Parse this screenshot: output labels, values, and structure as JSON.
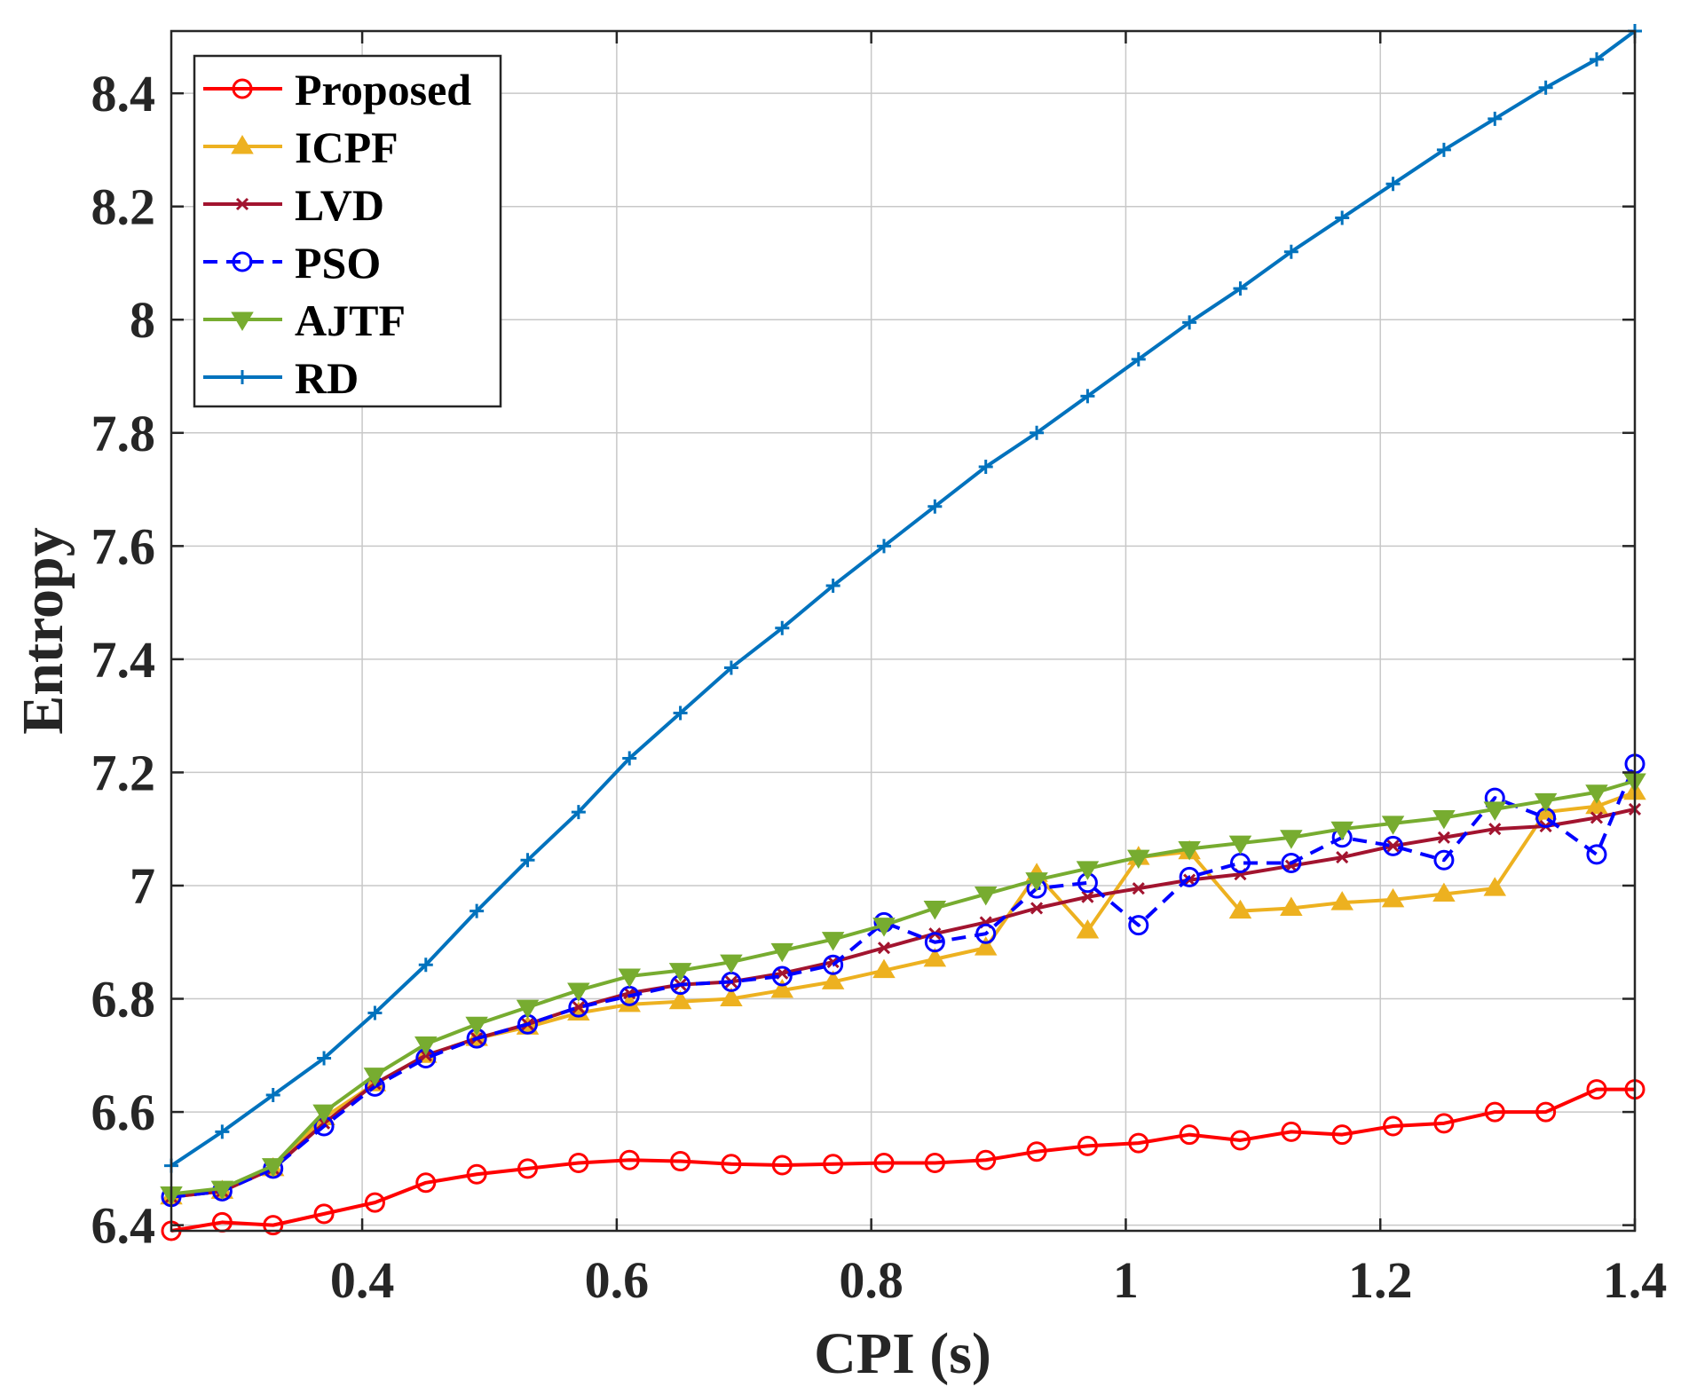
{
  "chart_data": {
    "type": "line",
    "title": "",
    "xlabel": "CPI (s)",
    "ylabel": "Entropy",
    "xlim": [
      0.25,
      1.4
    ],
    "ylim": [
      6.39,
      8.51
    ],
    "grid": true,
    "legend_position": "top-left",
    "x_ticks": [
      0.4,
      0.6,
      0.8,
      1,
      1.2,
      1.4
    ],
    "x_tick_labels": [
      "0.4",
      "0.6",
      "0.8",
      "1",
      "1.2",
      "1.4"
    ],
    "y_ticks": [
      6.4,
      6.6,
      6.8,
      7,
      7.2,
      7.4,
      7.6,
      7.8,
      8,
      8.2,
      8.4
    ],
    "y_tick_labels": [
      "6.4",
      "6.6",
      "6.8",
      "7",
      "7.2",
      "7.4",
      "7.6",
      "7.8",
      "8",
      "8.2",
      "8.4"
    ],
    "x": [
      0.25,
      0.29,
      0.33,
      0.37,
      0.41,
      0.45,
      0.49,
      0.53,
      0.57,
      0.61,
      0.65,
      0.69,
      0.73,
      0.77,
      0.81,
      0.85,
      0.89,
      0.93,
      0.97,
      1.01,
      1.05,
      1.09,
      1.13,
      1.17,
      1.21,
      1.25,
      1.29,
      1.33,
      1.37,
      1.4
    ],
    "series": [
      {
        "name": "Proposed",
        "color": "#ff0000",
        "marker": "circle",
        "dash": "solid",
        "values": [
          6.39,
          6.405,
          6.4,
          6.42,
          6.44,
          6.475,
          6.49,
          6.5,
          6.51,
          6.515,
          6.513,
          6.508,
          6.506,
          6.508,
          6.51,
          6.51,
          6.515,
          6.53,
          6.54,
          6.545,
          6.56,
          6.55,
          6.565,
          6.56,
          6.575,
          6.58,
          6.6,
          6.6,
          6.64,
          6.64
        ]
      },
      {
        "name": "ICPF",
        "color": "#edb120",
        "marker": "triangle-up",
        "dash": "solid",
        "values": [
          6.45,
          6.46,
          6.5,
          6.59,
          6.65,
          6.7,
          6.73,
          6.75,
          6.775,
          6.79,
          6.795,
          6.8,
          6.815,
          6.83,
          6.85,
          6.87,
          6.89,
          7.02,
          6.92,
          7.05,
          7.06,
          6.955,
          6.96,
          6.97,
          6.975,
          6.985,
          6.995,
          7.13,
          7.14,
          7.165
        ]
      },
      {
        "name": "LVD",
        "color": "#a2142f",
        "marker": "x",
        "dash": "solid",
        "values": [
          6.45,
          6.46,
          6.5,
          6.58,
          6.65,
          6.7,
          6.73,
          6.755,
          6.785,
          6.81,
          6.825,
          6.83,
          6.845,
          6.865,
          6.89,
          6.915,
          6.935,
          6.96,
          6.98,
          6.995,
          7.01,
          7.02,
          7.035,
          7.05,
          7.07,
          7.085,
          7.1,
          7.105,
          7.12,
          7.135
        ]
      },
      {
        "name": "PSO",
        "color": "#0000ff",
        "marker": "circle",
        "dash": "dashed",
        "values": [
          6.45,
          6.46,
          6.5,
          6.575,
          6.645,
          6.695,
          6.73,
          6.755,
          6.785,
          6.805,
          6.825,
          6.83,
          6.84,
          6.86,
          6.935,
          6.9,
          6.915,
          6.995,
          7.005,
          6.93,
          7.015,
          7.04,
          7.04,
          7.085,
          7.07,
          7.045,
          7.155,
          7.12,
          7.055,
          7.215
        ]
      },
      {
        "name": "AJTF",
        "color": "#77ac30",
        "marker": "triangle-down",
        "dash": "solid",
        "values": [
          6.455,
          6.465,
          6.505,
          6.6,
          6.665,
          6.72,
          6.755,
          6.785,
          6.815,
          6.84,
          6.85,
          6.865,
          6.885,
          6.905,
          6.93,
          6.96,
          6.985,
          7.01,
          7.03,
          7.05,
          7.065,
          7.075,
          7.085,
          7.1,
          7.11,
          7.12,
          7.135,
          7.15,
          7.165,
          7.185
        ]
      },
      {
        "name": "RD",
        "color": "#0072bd",
        "marker": "plus",
        "dash": "solid",
        "values": [
          6.505,
          6.565,
          6.63,
          6.695,
          6.775,
          6.86,
          6.955,
          7.045,
          7.13,
          7.225,
          7.305,
          7.385,
          7.455,
          7.53,
          7.6,
          7.67,
          7.74,
          7.8,
          7.865,
          7.93,
          7.995,
          8.055,
          8.12,
          8.18,
          8.24,
          8.3,
          8.355,
          8.41,
          8.46,
          8.51
        ]
      }
    ]
  }
}
